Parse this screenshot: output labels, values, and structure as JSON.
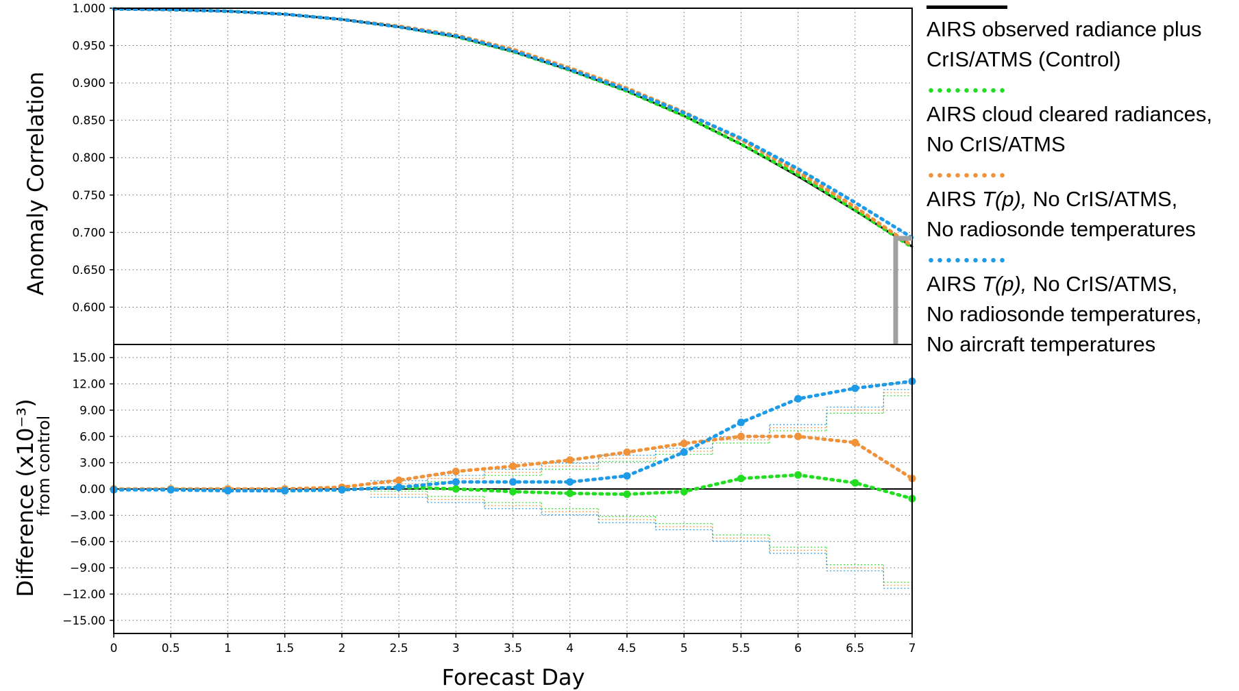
{
  "chart_data": [
    {
      "type": "line",
      "ylabel": "Anomaly Correlation",
      "xlim": [
        0,
        7
      ],
      "ylim": [
        0.55,
        1.0
      ],
      "y_ticks": [
        "1.000",
        "0.950",
        "0.900",
        "0.850",
        "0.800",
        "0.750",
        "0.700",
        "0.650",
        "0.600"
      ],
      "x": [
        0,
        0.5,
        1,
        1.5,
        2,
        2.5,
        3,
        3.5,
        4,
        4.5,
        5,
        5.5,
        6,
        6.5,
        7
      ],
      "series": [
        {
          "name": "AIRS observed radiance plus CrIS/ATMS (Control)",
          "color": "#000000",
          "style": "solid",
          "values": [
            0.999,
            0.998,
            0.996,
            0.992,
            0.985,
            0.975,
            0.962,
            0.942,
            0.917,
            0.889,
            0.856,
            0.818,
            0.775,
            0.729,
            0.681
          ]
        },
        {
          "name": "AIRS cloud cleared radiances, No CrIS/ATMS",
          "color": "#22dd22",
          "style": "dotted",
          "values": [
            0.999,
            0.998,
            0.996,
            0.992,
            0.985,
            0.975,
            0.962,
            0.942,
            0.917,
            0.889,
            0.856,
            0.818,
            0.777,
            0.73,
            0.68
          ]
        },
        {
          "name": "AIRS T(p), No CrIS/ATMS, No radiosonde temperatures",
          "color": "#f0923a",
          "style": "dotted",
          "values": [
            0.999,
            0.998,
            0.996,
            0.992,
            0.985,
            0.976,
            0.964,
            0.945,
            0.92,
            0.893,
            0.861,
            0.824,
            0.781,
            0.734,
            0.682
          ]
        },
        {
          "name": "AIRS T(p), No CrIS/ATMS, No radiosonde temperatures, No aircraft temperatures",
          "color": "#1e9be8",
          "style": "dotted",
          "values": [
            0.999,
            0.998,
            0.996,
            0.992,
            0.985,
            0.975,
            0.963,
            0.943,
            0.918,
            0.891,
            0.86,
            0.826,
            0.785,
            0.74,
            0.693
          ]
        }
      ]
    },
    {
      "type": "line",
      "xlabel": "Forecast Day",
      "ylabel": "Difference (x10⁻³)",
      "ylabel_sub": "from control",
      "xlim": [
        0,
        7
      ],
      "ylim": [
        -16.5,
        16.5
      ],
      "x_ticks": [
        "0",
        "0.5",
        "1",
        "1.5",
        "2",
        "2.5",
        "3",
        "3.5",
        "4",
        "4.5",
        "5",
        "5.5",
        "6",
        "6.5",
        "7"
      ],
      "y_ticks": [
        "15.00",
        "12.00",
        "9.00",
        "6.00",
        "3.00",
        "0.00",
        "−3.00",
        "−6.00",
        "−9.00",
        "−12.00",
        "−15.00"
      ],
      "x": [
        0,
        0.5,
        1,
        1.5,
        2,
        2.5,
        3,
        3.5,
        4,
        4.5,
        5,
        5.5,
        6,
        6.5,
        7
      ],
      "series": [
        {
          "name": "AIRS cloud cleared radiances, No CrIS/ATMS",
          "color": "#22dd22",
          "values": [
            0,
            0,
            0,
            -0.2,
            -0.1,
            0.2,
            0,
            -0.3,
            -0.5,
            -0.6,
            -0.3,
            1.2,
            1.6,
            0.7,
            -1.1
          ]
        },
        {
          "name": "AIRS T(p), No CrIS/ATMS, No radiosonde temperatures",
          "color": "#f0923a",
          "values": [
            0,
            0,
            0,
            0,
            0.2,
            1.0,
            2.0,
            2.6,
            3.3,
            4.2,
            5.2,
            6.0,
            6.0,
            5.3,
            1.2
          ]
        },
        {
          "name": "AIRS T(p), No CrIS/ATMS, No radiosonde temperatures, No aircraft temperatures",
          "color": "#1e9be8",
          "values": [
            -0.1,
            -0.1,
            -0.2,
            -0.2,
            -0.1,
            0.2,
            0.8,
            0.8,
            0.8,
            1.5,
            4.2,
            7.6,
            10.3,
            11.5,
            12.3
          ]
        }
      ],
      "significance_bounds": {
        "x_edges": [
          2.25,
          2.75,
          3.25,
          3.75,
          4.25,
          4.75,
          5.25,
          5.75,
          6.25,
          6.75,
          7.0
        ],
        "upper": [
          0.6,
          1.2,
          1.9,
          2.6,
          3.5,
          4.3,
          5.6,
          7.0,
          9.0,
          11.0,
          13.0
        ],
        "lower": [
          -0.6,
          -1.2,
          -1.9,
          -2.6,
          -3.5,
          -4.3,
          -5.6,
          -7.0,
          -9.0,
          -11.0,
          -13.0
        ]
      }
    }
  ],
  "legend": {
    "items": [
      {
        "color": "#000000",
        "style": "solid",
        "text": "AIRS observed radiance plus\nCrIS/ATMS (Control)"
      },
      {
        "color": "#22dd22",
        "style": "dotted",
        "text": "AIRS cloud cleared radiances,\nNo CrIS/ATMS"
      },
      {
        "color": "#f0923a",
        "style": "dotted",
        "text_prefix": "AIRS ",
        "text_italic": "T(p),",
        "text_suffix": " No CrIS/ATMS,\nNo radiosonde temperatures"
      },
      {
        "color": "#1e9be8",
        "style": "dotted",
        "text_prefix": "AIRS ",
        "text_italic": "T(p),",
        "text_suffix": " No CrIS/ATMS,\nNo radiosonde temperatures,\nNo aircraft temperatures"
      }
    ]
  }
}
